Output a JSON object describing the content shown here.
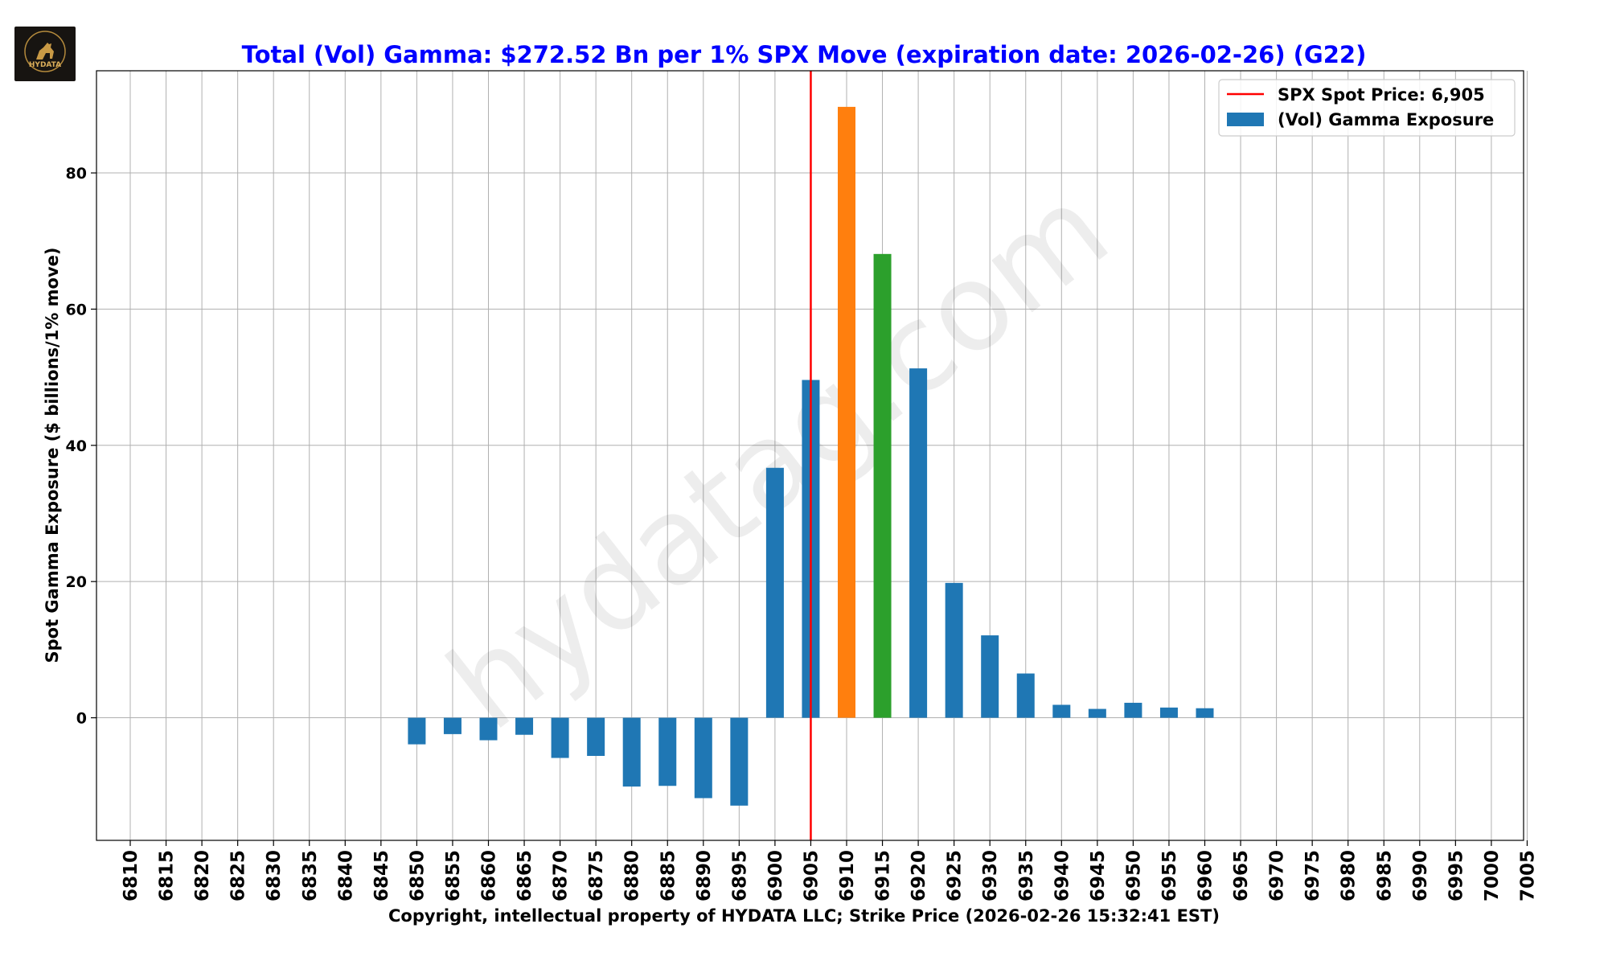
{
  "branding": {
    "logo_text": "HYDATA",
    "watermark": "hydatag.com"
  },
  "chart_data": {
    "type": "bar",
    "title": "Total (Vol) Gamma: $272.52 Bn per 1% SPX Move (expiration date: 2026-02-26) (G22)",
    "xlabel": "Copyright, intellectual property of HYDATA LLC; Strike Price (2026-02-26 15:32:41 EST)",
    "ylabel": "Spot Gamma Exposure ($ billions/1% move)",
    "ylim": [
      -18,
      95
    ],
    "yticks": [
      0,
      20,
      40,
      60,
      80
    ],
    "grid": true,
    "legend_position": "top-right",
    "legend": [
      {
        "label": "SPX Spot Price: 6,905",
        "kind": "line",
        "color": "#ff0000"
      },
      {
        "label": "(Vol) Gamma Exposure",
        "kind": "bar",
        "color": "#1f77b4"
      }
    ],
    "spot_price": 6905,
    "categories": [
      "6810",
      "6815",
      "6820",
      "6825",
      "6830",
      "6835",
      "6840",
      "6845",
      "6850",
      "6855",
      "6860",
      "6865",
      "6870",
      "6875",
      "6880",
      "6885",
      "6890",
      "6895",
      "6900",
      "6905",
      "6910",
      "6915",
      "6920",
      "6925",
      "6930",
      "6935",
      "6940",
      "6945",
      "6950",
      "6955",
      "6960",
      "6965",
      "6970",
      "6975",
      "6980",
      "6985",
      "6990",
      "6995",
      "7000",
      "7005"
    ],
    "values": [
      0,
      0,
      0,
      0,
      0,
      0,
      0,
      0,
      -3.9,
      -2.4,
      -3.3,
      -2.5,
      -5.9,
      -5.6,
      -10.1,
      -10,
      -11.8,
      -12.9,
      36.7,
      49.6,
      89.7,
      68.1,
      51.3,
      19.8,
      12.1,
      6.5,
      1.9,
      1.3,
      2.2,
      1.5,
      1.4,
      0,
      0,
      0,
      0,
      0,
      0,
      0,
      0,
      0
    ],
    "colors": {
      "default": "#1f77b4",
      "max": "#ff7f0e",
      "second": "#2ca02c",
      "spot_line": "#ff0000",
      "title": "#0000ff",
      "grid": "#b0b0b0"
    },
    "highlight": {
      "6910": "max",
      "6915": "second"
    }
  }
}
